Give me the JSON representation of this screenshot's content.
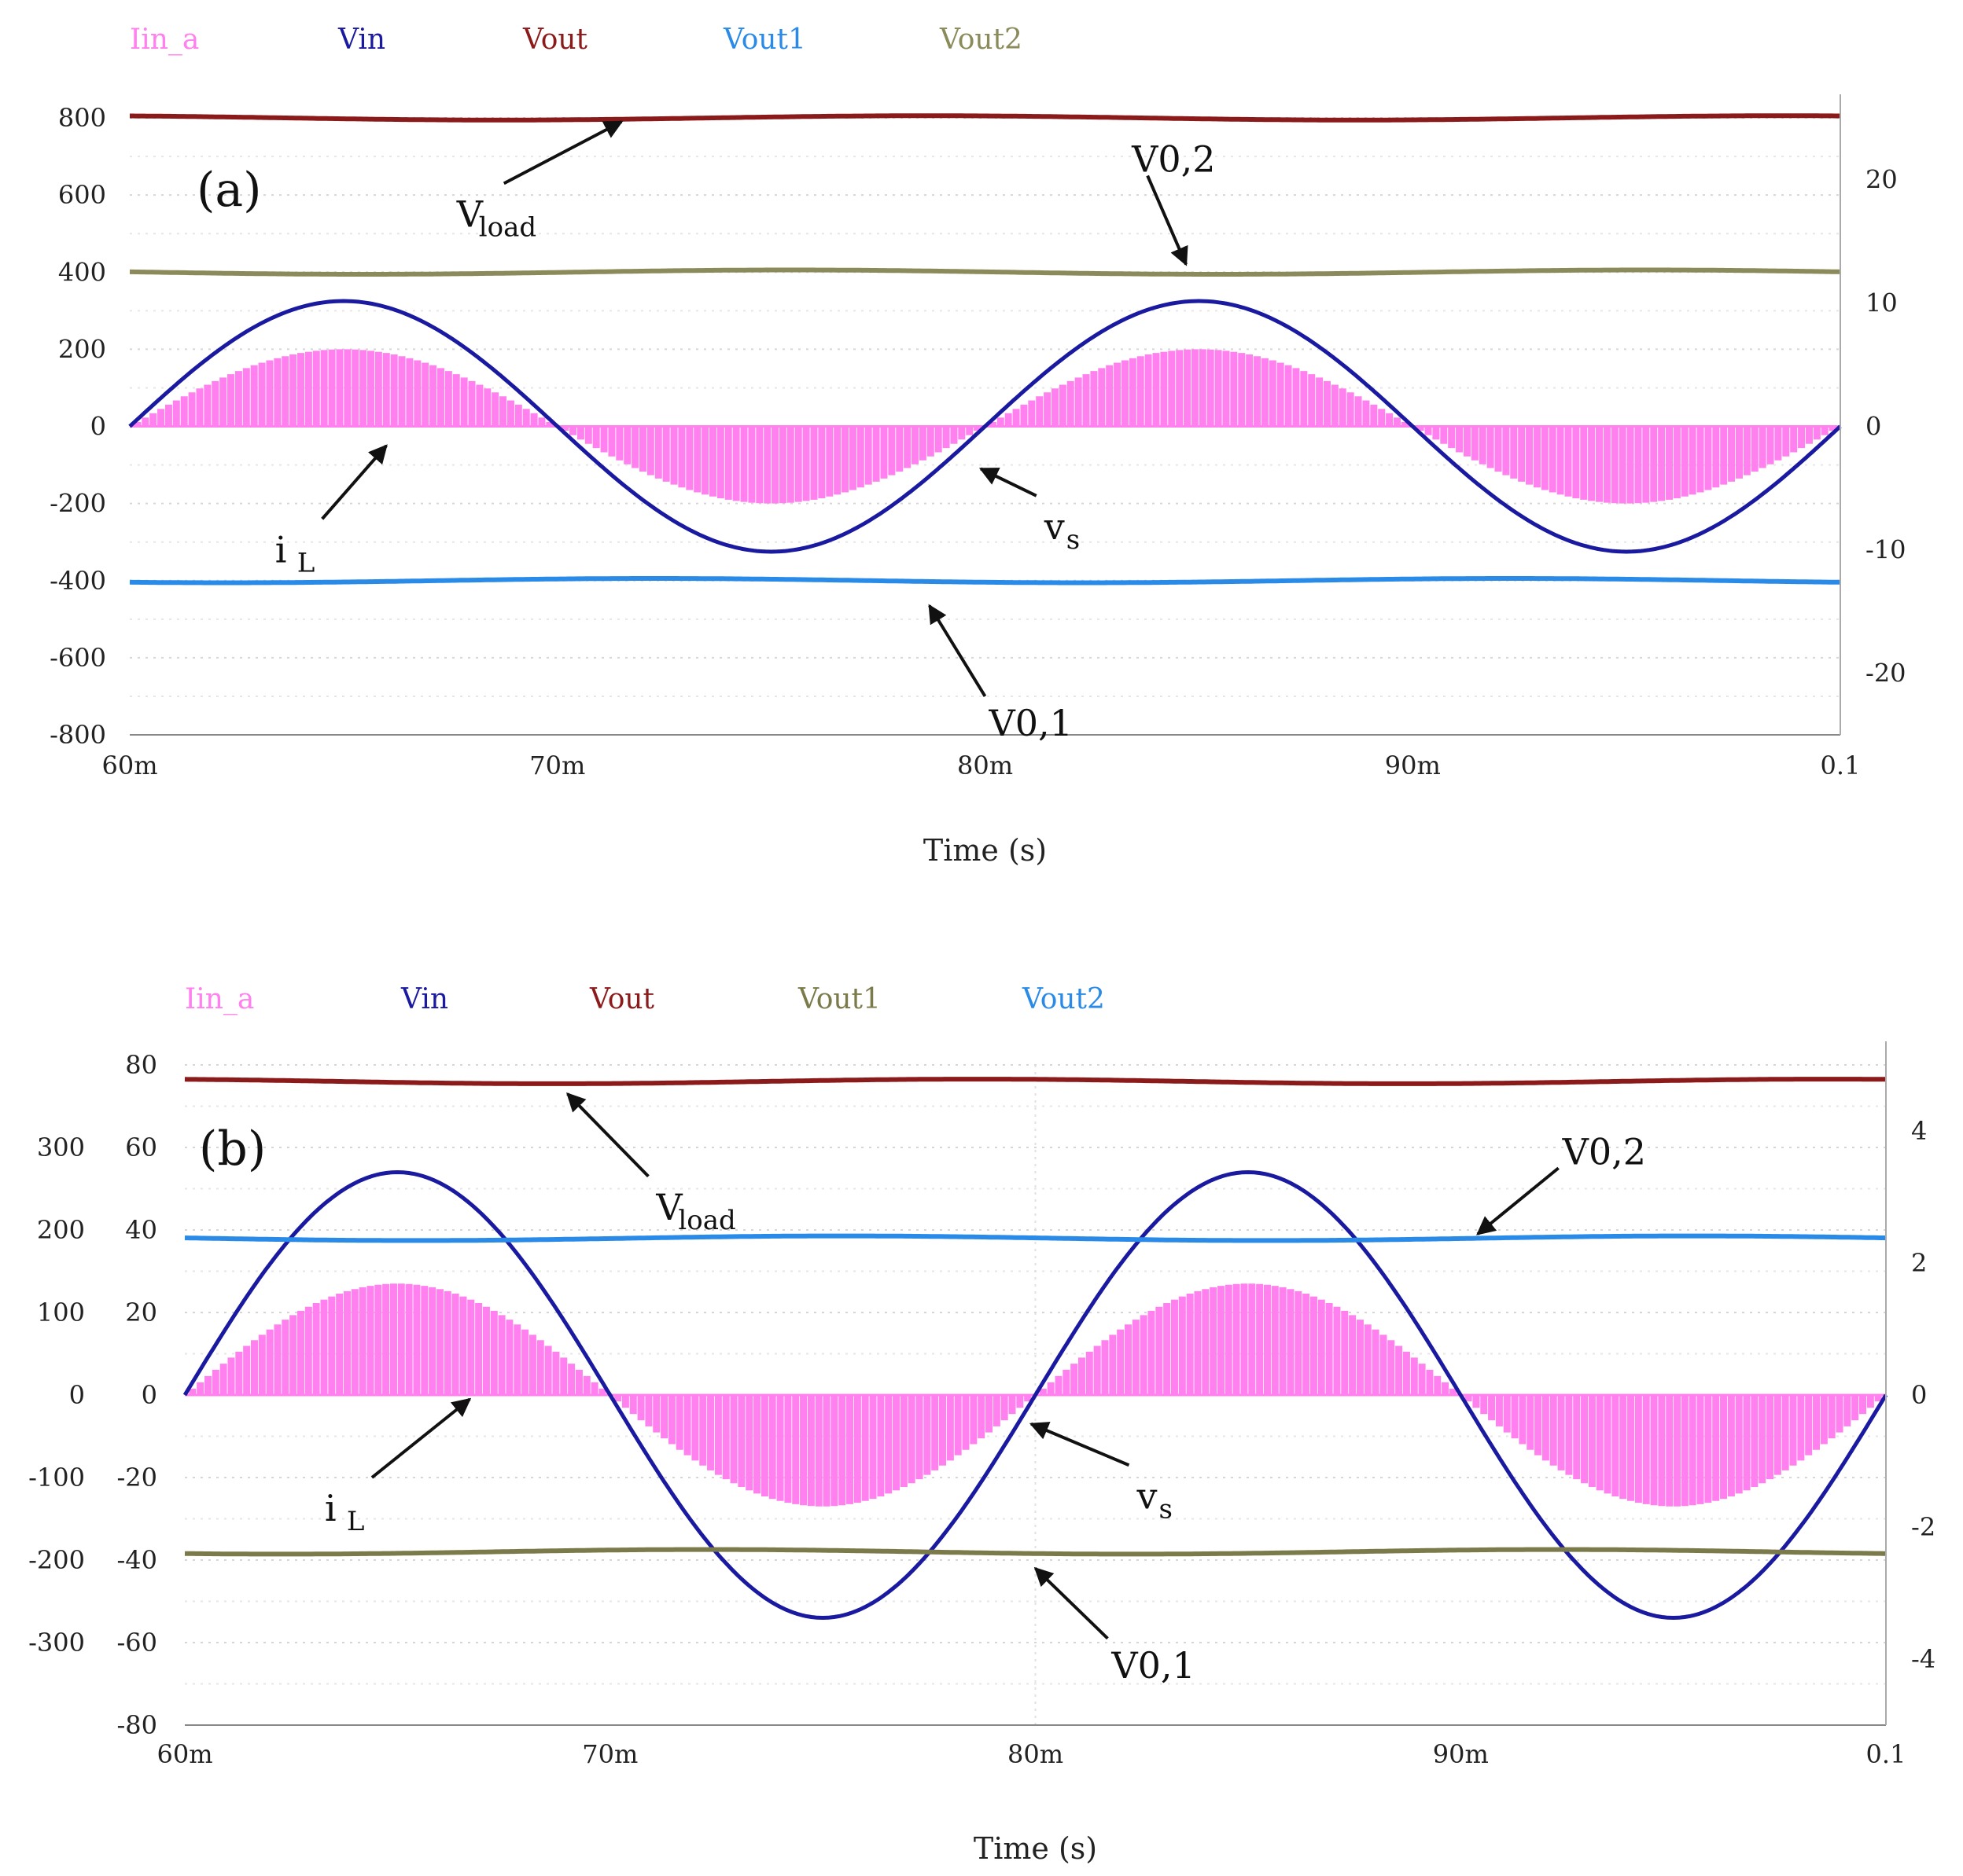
{
  "chart_data": [
    {
      "panel_label": "(a)",
      "type": "line",
      "x_label": "Time (s)",
      "x_range": [
        0.06,
        0.1
      ],
      "x_ticks": [
        {
          "value": 0.06,
          "label": "60m"
        },
        {
          "value": 0.07,
          "label": "70m"
        },
        {
          "value": 0.08,
          "label": "80m"
        },
        {
          "value": 0.09,
          "label": "90m"
        },
        {
          "value": 0.1,
          "label": "0.1"
        }
      ],
      "y_left": {
        "range": [
          -800,
          800
        ],
        "ticks": [
          "800",
          "600",
          "400",
          "200",
          "0",
          "-200",
          "-400",
          "-600",
          "-800"
        ],
        "color": "#222222"
      },
      "y_right": {
        "range": [
          -25,
          25
        ],
        "ticks": [
          "20",
          "10",
          "0",
          "-10",
          "-20"
        ],
        "color": "#66aa22"
      },
      "legend": [
        {
          "name": "Iin_a",
          "color": "#ff80ee"
        },
        {
          "name": "Vin",
          "color": "#1a1aa0"
        },
        {
          "name": "Vout",
          "color": "#8b1a1a"
        },
        {
          "name": "Vout1",
          "color": "#2a8ae8"
        },
        {
          "name": "Vout2",
          "color": "#8a8a5a"
        }
      ],
      "series": [
        {
          "name": "Iin_a",
          "kind": "filled-sine",
          "amplitude": 200,
          "frequency_hz": 50,
          "color": "#ff80ee"
        },
        {
          "name": "Vin",
          "kind": "sine",
          "amplitude": 325,
          "frequency_hz": 50,
          "color": "#1a1aa0"
        },
        {
          "name": "Vout",
          "kind": "constant",
          "value": 800,
          "color": "#8b1a1a"
        },
        {
          "name": "Vout2",
          "kind": "constant",
          "value": 400,
          "color": "#8a8a5a"
        },
        {
          "name": "Vout1",
          "kind": "constant",
          "value": -400,
          "color": "#2a8ae8"
        }
      ],
      "annotations": [
        {
          "text": "V",
          "sub": "load",
          "tail": [
            0.06875,
            630
          ],
          "head": [
            0.0715,
            790
          ]
        },
        {
          "text": "V0,2",
          "sub": "",
          "tail": [
            0.0838,
            650
          ],
          "head": [
            0.0847,
            420
          ]
        },
        {
          "text": "i",
          "sub": "L",
          "tail": [
            0.0645,
            -240
          ],
          "head": [
            0.066,
            -50
          ]
        },
        {
          "text": "v",
          "sub": "s",
          "tail": [
            0.0812,
            -180
          ],
          "head": [
            0.0799,
            -110
          ]
        },
        {
          "text": "V0,1",
          "sub": "",
          "tail": [
            0.08,
            -700
          ],
          "head": [
            0.0787,
            -465
          ]
        }
      ]
    },
    {
      "panel_label": "(b)",
      "type": "line",
      "x_label": "Time (s)",
      "x_range": [
        0.06,
        0.1
      ],
      "x_ticks": [
        {
          "value": 0.06,
          "label": "60m"
        },
        {
          "value": 0.07,
          "label": "70m"
        },
        {
          "value": 0.08,
          "label": "80m"
        },
        {
          "value": 0.09,
          "label": "90m"
        },
        {
          "value": 0.1,
          "label": "0.1"
        }
      ],
      "y_left": {
        "range": [
          -80,
          80
        ],
        "ticks": [
          "80",
          "60",
          "40",
          "20",
          "0",
          "-20",
          "-40",
          "-60",
          "-80"
        ],
        "color": "#222222"
      },
      "y_left_outer": {
        "range": [
          -400,
          400
        ],
        "ticks": [
          "300",
          "200",
          "100",
          "0",
          "-100",
          "-200",
          "-300"
        ],
        "color": "#e05050"
      },
      "y_right": {
        "range": [
          -5,
          5
        ],
        "ticks": [
          "4",
          "2",
          "0",
          "-2",
          "-4"
        ],
        "color": "#66aa22"
      },
      "legend": [
        {
          "name": "Iin_a",
          "color": "#ff80ee"
        },
        {
          "name": "Vin",
          "color": "#1a1aa0"
        },
        {
          "name": "Vout",
          "color": "#8b1a1a"
        },
        {
          "name": "Vout1",
          "color": "#7a7a4a"
        },
        {
          "name": "Vout2",
          "color": "#2a8ae8"
        }
      ],
      "series": [
        {
          "name": "Iin_a",
          "kind": "filled-sine",
          "amplitude": 27,
          "frequency_hz": 50,
          "color": "#ff80ee"
        },
        {
          "name": "Vin",
          "kind": "sine",
          "amplitude": 54,
          "frequency_hz": 50,
          "color": "#1a1aa0"
        },
        {
          "name": "Vout",
          "kind": "constant",
          "value": 76,
          "color": "#8b1a1a"
        },
        {
          "name": "Vout2",
          "kind": "constant",
          "value": 38,
          "color": "#2a8ae8"
        },
        {
          "name": "Vout1",
          "kind": "constant",
          "value": -38,
          "color": "#7a7a4a"
        }
      ],
      "annotations": [
        {
          "text": "V",
          "sub": "load",
          "tail": [
            0.0709,
            53
          ],
          "head": [
            0.069,
            73
          ]
        },
        {
          "text": "V0,2",
          "sub": "",
          "tail": [
            0.0923,
            55
          ],
          "head": [
            0.0904,
            39
          ]
        },
        {
          "text": "i",
          "sub": "L",
          "tail": [
            0.0644,
            -20
          ],
          "head": [
            0.0667,
            -1
          ]
        },
        {
          "text": "v",
          "sub": "s",
          "tail": [
            0.0822,
            -17
          ],
          "head": [
            0.0799,
            -7
          ]
        },
        {
          "text": "V0,1",
          "sub": "",
          "tail": [
            0.0817,
            -59
          ],
          "head": [
            0.08,
            -42
          ]
        }
      ]
    }
  ]
}
